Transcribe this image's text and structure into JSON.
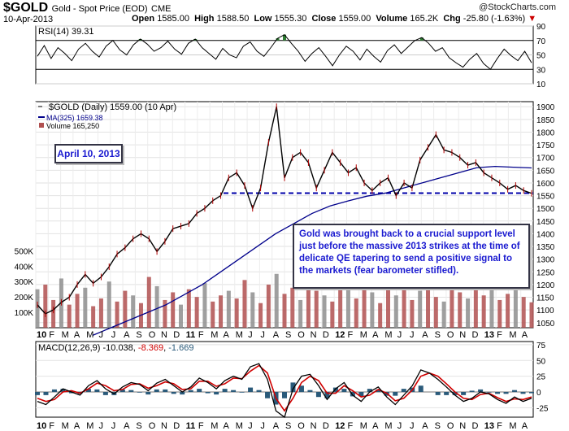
{
  "header": {
    "symbol": "$GOLD",
    "description": "Gold - Spot Price (EOD)",
    "exchange": "CME",
    "date": "10-Apr-2013",
    "open_label": "Open",
    "open": "1585.00",
    "high_label": "High",
    "high": "1588.50",
    "low_label": "Low",
    "low": "1555.30",
    "close_label": "Close",
    "close": "1559.00",
    "volume_label": "Volume",
    "volume": "165.2K",
    "chg_label": "Chg",
    "chg": "-25.80 (-1.63%)"
  },
  "watermark": "@StockCharts.com",
  "annotations": {
    "date_box": "April 10, 2013",
    "note": "Gold was brought back to a crucial support level just before the massive 2013 strikes at the time of delicate QE tapering to send a positive signal to the markets (fear barometer stifled)."
  },
  "colors": {
    "price": "#000000",
    "ma": "#00008b",
    "support": "#0000aa",
    "volume": "#b05050",
    "macd": "#000000",
    "signal": "#d00000",
    "histogram": "#2a5a7a",
    "rsi_fill": "#2e7d32"
  },
  "chart_data": [
    {
      "type": "line",
      "panel": "rsi",
      "title": "RSI(14) 39.31",
      "label": "RSI(14)",
      "value": 39.31,
      "yticks": [
        10,
        30,
        50,
        70,
        90
      ],
      "ylim": [
        10,
        90
      ],
      "reference_lines": [
        30,
        70
      ],
      "series": [
        {
          "name": "RSI(14)",
          "values": [
            48,
            63,
            45,
            60,
            52,
            42,
            58,
            66,
            55,
            47,
            62,
            70,
            57,
            50,
            64,
            72,
            65,
            55,
            60,
            69,
            58,
            51,
            66,
            72,
            60,
            52,
            44,
            59,
            50,
            46,
            62,
            68,
            55,
            48,
            60,
            73,
            78,
            66,
            55,
            41,
            52,
            60,
            48,
            35,
            50,
            62,
            55,
            43,
            58,
            48,
            40,
            56,
            64,
            52,
            61,
            70,
            74,
            66,
            55,
            60,
            46,
            39,
            33,
            44,
            52,
            38,
            30,
            45,
            58,
            49,
            42,
            55,
            39
          ]
        }
      ]
    },
    {
      "type": "line",
      "panel": "price",
      "title": "$GOLD (Daily) 1559.00 (10 Apr)",
      "yticks": [
        1050,
        1100,
        1150,
        1200,
        1250,
        1300,
        1350,
        1400,
        1450,
        1500,
        1550,
        1600,
        1650,
        1700,
        1750,
        1800,
        1850,
        1900
      ],
      "ylim": [
        1030,
        1920
      ],
      "xticks": [
        "10",
        "F",
        "M",
        "A",
        "M",
        "J",
        "J",
        "A",
        "S",
        "O",
        "N",
        "D",
        "11",
        "F",
        "M",
        "A",
        "M",
        "J",
        "J",
        "A",
        "S",
        "O",
        "N",
        "D",
        "12",
        "F",
        "M",
        "A",
        "M",
        "J",
        "J",
        "A",
        "S",
        "O",
        "N",
        "D",
        "13",
        "F",
        "M",
        "A"
      ],
      "support_level": 1560,
      "series": [
        {
          "name": "$GOLD (Daily)",
          "last": 1559.0,
          "values": [
            1120,
            1085,
            1100,
            1130,
            1150,
            1200,
            1240,
            1205,
            1230,
            1270,
            1320,
            1345,
            1380,
            1400,
            1380,
            1330,
            1370,
            1420,
            1430,
            1440,
            1480,
            1500,
            1530,
            1550,
            1620,
            1640,
            1590,
            1500,
            1580,
            1760,
            1900,
            1620,
            1700,
            1720,
            1680,
            1580,
            1650,
            1720,
            1680,
            1640,
            1660,
            1600,
            1570,
            1600,
            1620,
            1550,
            1600,
            1580,
            1690,
            1740,
            1790,
            1730,
            1720,
            1700,
            1670,
            1680,
            1640,
            1620,
            1600,
            1575,
            1590,
            1570,
            1559
          ]
        },
        {
          "name": "MA(325)",
          "last": 1659.38,
          "values": [
            1000,
            1030,
            1060,
            1090,
            1120,
            1160,
            1200,
            1250,
            1300,
            1350,
            1400,
            1440,
            1480,
            1510,
            1530,
            1548,
            1560,
            1580,
            1600,
            1620,
            1640,
            1660,
            1665,
            1662,
            1659
          ]
        }
      ],
      "volume": {
        "name": "Volume",
        "last": 165250,
        "yticks": [
          100000,
          200000,
          300000,
          400000,
          500000
        ],
        "ytick_labels": [
          "100K",
          "200K",
          "300K",
          "400K",
          "500K"
        ],
        "ylim": [
          0,
          650000
        ],
        "values": [
          250000,
          280000,
          180000,
          320000,
          150000,
          220000,
          260000,
          140000,
          190000,
          300000,
          170000,
          240000,
          210000,
          160000,
          330000,
          270000,
          180000,
          230000,
          150000,
          250000,
          200000,
          290000,
          170000,
          210000,
          240000,
          190000,
          310000,
          230000,
          160000,
          280000,
          350000,
          220000,
          260000,
          180000,
          300000,
          240000,
          210000,
          170000,
          320000,
          250000,
          190000,
          270000,
          230000,
          160000,
          290000,
          210000,
          250000,
          180000,
          240000,
          300000,
          200000,
          170000,
          260000,
          230000,
          190000,
          280000,
          210000,
          250000,
          180000,
          220000,
          270000,
          200000,
          165250
        ]
      }
    },
    {
      "type": "line",
      "panel": "macd",
      "title": "MACD(12,26,9) -10.038, -8.369, -1.669",
      "label": "MACD(12,26,9)",
      "values_text": [
        "-10.038",
        "-8.369",
        "-1.669"
      ],
      "yticks": [
        -25,
        0,
        25,
        50,
        75
      ],
      "ylim": [
        -40,
        80
      ],
      "series": [
        {
          "name": "MACD",
          "values": [
            -15,
            -20,
            -8,
            5,
            0,
            -5,
            10,
            18,
            5,
            -3,
            8,
            15,
            12,
            2,
            14,
            20,
            10,
            0,
            8,
            22,
            15,
            5,
            18,
            25,
            20,
            40,
            45,
            20,
            -30,
            -40,
            5,
            25,
            28,
            10,
            -12,
            5,
            15,
            -5,
            -15,
            0,
            8,
            -8,
            -20,
            -5,
            10,
            35,
            30,
            20,
            8,
            -5,
            -15,
            -10,
            0,
            -3,
            -12,
            -18,
            -8,
            -15,
            -10
          ]
        },
        {
          "name": "Signal",
          "values": [
            -10,
            -15,
            -12,
            0,
            2,
            -2,
            5,
            14,
            10,
            2,
            4,
            12,
            13,
            6,
            10,
            16,
            13,
            4,
            5,
            17,
            17,
            9,
            13,
            22,
            21,
            33,
            42,
            30,
            -10,
            -30,
            -10,
            15,
            25,
            18,
            -2,
            -2,
            10,
            2,
            -8,
            -5,
            4,
            -2,
            -14,
            -10,
            3,
            25,
            30,
            25,
            13,
            0,
            -10,
            -12,
            -4,
            -2,
            -9,
            -15,
            -11,
            -12,
            -8
          ]
        },
        {
          "name": "Histogram",
          "values": [
            -5,
            -5,
            4,
            5,
            -2,
            -3,
            5,
            4,
            -5,
            -5,
            4,
            3,
            -1,
            -4,
            4,
            4,
            -3,
            -4,
            3,
            5,
            -2,
            -4,
            5,
            3,
            -1,
            7,
            3,
            -10,
            -20,
            -10,
            15,
            10,
            3,
            -8,
            -10,
            7,
            5,
            -7,
            -7,
            5,
            4,
            -6,
            -6,
            5,
            7,
            10,
            0,
            -5,
            -5,
            -5,
            -5,
            2,
            4,
            -1,
            -3,
            -3,
            3,
            -3,
            -2
          ]
        }
      ]
    }
  ]
}
